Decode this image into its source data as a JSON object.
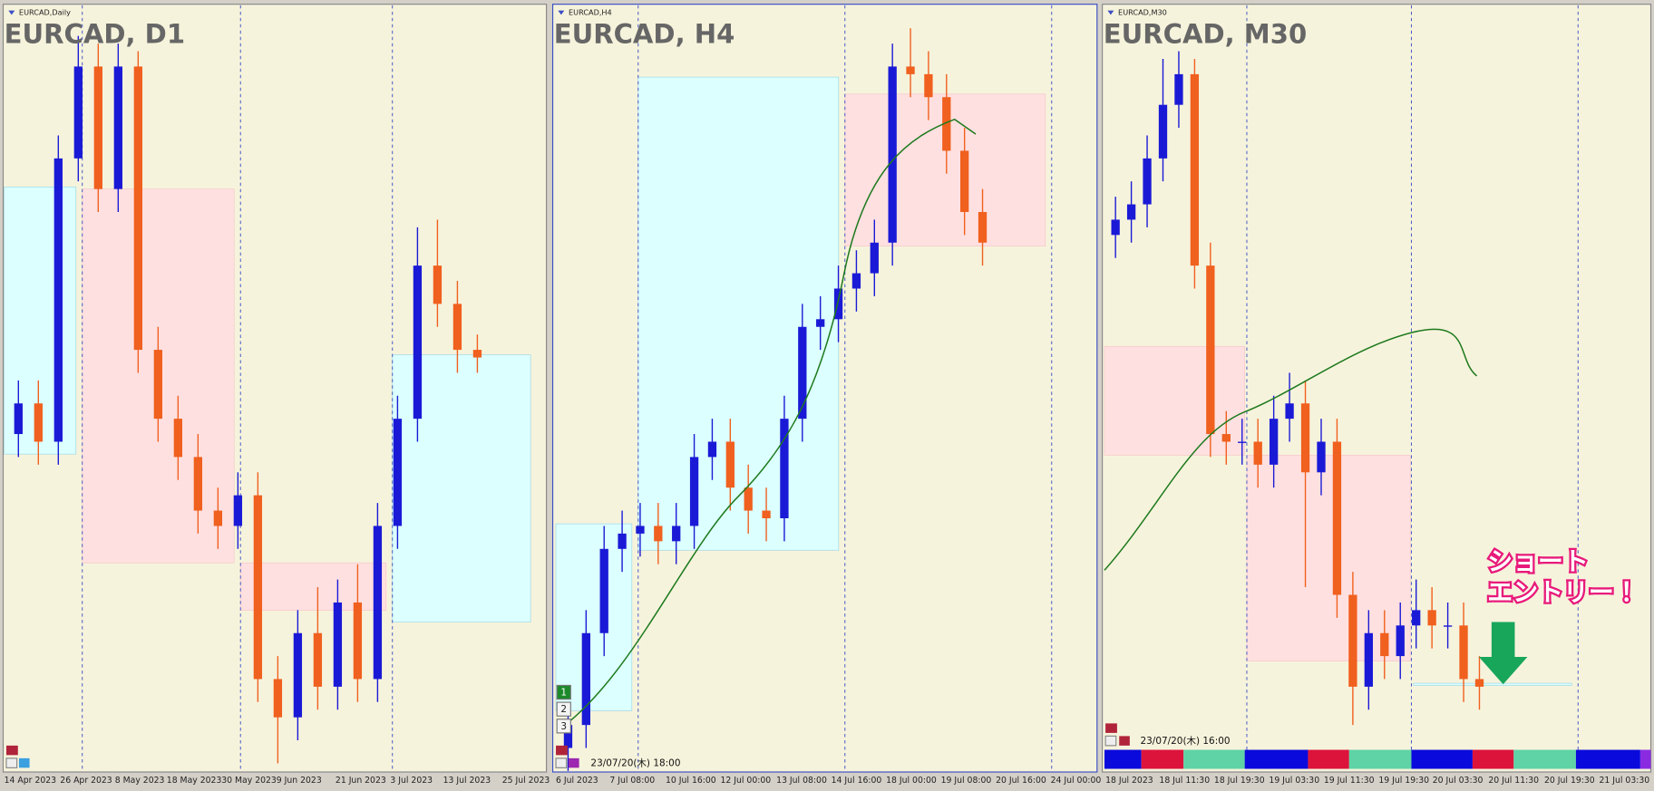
{
  "chart_data": [
    {
      "type": "candlestick",
      "symbol": "EURCAD,Daily",
      "title": "EURCAD, D1",
      "up_color": "#1a1ad6",
      "down_color": "#f0601e",
      "ylim": [
        0,
        100
      ],
      "open": [
        44,
        48,
        43,
        80,
        92,
        76,
        92,
        55,
        46,
        41,
        34,
        32,
        36,
        12,
        7,
        18,
        11,
        22,
        12,
        32,
        46,
        66,
        61,
        55
      ],
      "high": [
        51,
        51,
        83,
        96,
        95,
        95,
        94,
        58,
        49,
        44,
        37,
        39,
        39,
        15,
        21,
        24,
        25,
        27,
        35,
        49,
        71,
        72,
        64,
        57
      ],
      "low": [
        41,
        40,
        40,
        77,
        73,
        73,
        52,
        43,
        38,
        31,
        29,
        29,
        9,
        1,
        4,
        8,
        8,
        9,
        9,
        29,
        43,
        58,
        52,
        52
      ],
      "close": [
        48,
        43,
        80,
        92,
        76,
        92,
        55,
        46,
        41,
        34,
        32,
        36,
        12,
        7,
        18,
        11,
        22,
        12,
        32,
        46,
        66,
        61,
        55,
        54
      ],
      "x_labels": [
        "14 Apr 2023",
        "26 Apr 2023",
        "8 May 2023",
        "18 May 2023",
        "30 May 2023",
        "9 Jun 2023",
        "21 Jun 2023",
        "3 Jul 2023",
        "13 Jul 2023",
        "25 Jul 2023"
      ]
    },
    {
      "type": "candlestick",
      "symbol": "EURCAD,H4",
      "title": "EURCAD, H4",
      "up_color": "#1a1ad6",
      "down_color": "#f0601e",
      "ylim": [
        0,
        100
      ],
      "open": [
        3,
        6,
        18,
        29,
        31,
        32,
        30,
        32,
        41,
        43,
        37,
        34,
        33,
        46,
        58,
        59,
        63,
        65,
        69,
        92,
        91,
        88,
        81,
        73
      ],
      "high": [
        9,
        21,
        32,
        34,
        35,
        35,
        35,
        44,
        46,
        46,
        40,
        37,
        49,
        61,
        62,
        66,
        68,
        72,
        95,
        97,
        94,
        91,
        84,
        76
      ],
      "low": [
        0,
        3,
        15,
        26,
        28,
        27,
        27,
        29,
        38,
        34,
        31,
        30,
        30,
        43,
        55,
        56,
        60,
        62,
        66,
        88,
        85,
        78,
        70,
        66
      ],
      "close": [
        6,
        18,
        29,
        31,
        32,
        30,
        32,
        41,
        43,
        37,
        34,
        33,
        46,
        58,
        59,
        63,
        65,
        69,
        92,
        91,
        88,
        81,
        73,
        69
      ],
      "x_labels": [
        "6 Jul 2023",
        "7 Jul 08:00",
        "10 Jul 16:00",
        "12 Jul 00:00",
        "13 Jul 08:00",
        "14 Jul 16:00",
        "18 Jul 00:00",
        "19 Jul 08:00",
        "20 Jul 16:00",
        "24 Jul 00:00"
      ],
      "timestamp": "23/07/20(木) 18:00"
    },
    {
      "type": "candlestick",
      "symbol": "EURCAD,M30",
      "title": "EURCAD, M30",
      "up_color": "#1a1ad6",
      "down_color": "#f0601e",
      "ylim": [
        0,
        100
      ],
      "open": [
        70,
        72,
        74,
        80,
        87,
        91,
        66,
        44,
        43,
        43,
        40,
        46,
        48,
        39,
        43,
        23,
        11,
        18,
        15,
        19,
        21,
        19,
        19,
        12
      ],
      "high": [
        75,
        77,
        83,
        93,
        94,
        93,
        69,
        47,
        46,
        46,
        49,
        52,
        51,
        46,
        46,
        26,
        21,
        21,
        22,
        25,
        24,
        22,
        22,
        15
      ],
      "low": [
        67,
        69,
        71,
        77,
        84,
        63,
        41,
        40,
        40,
        37,
        37,
        43,
        24,
        36,
        20,
        6,
        8,
        12,
        12,
        16,
        16,
        16,
        9,
        8
      ],
      "close": [
        72,
        74,
        80,
        87,
        91,
        66,
        44,
        43,
        43,
        40,
        46,
        48,
        39,
        43,
        23,
        11,
        18,
        15,
        19,
        21,
        19,
        19,
        12,
        11
      ],
      "x_labels": [
        "18 Jul 2023",
        "18 Jul 11:30",
        "18 Jul 19:30",
        "19 Jul 03:30",
        "19 Jul 11:30",
        "19 Jul 19:30",
        "20 Jul 03:30",
        "20 Jul 11:30",
        "20 Jul 19:30",
        "21 Jul 03:30"
      ],
      "timestamp": "23/07/20(木) 16:00"
    }
  ],
  "buttons": [
    "1",
    "2",
    "3"
  ],
  "annotation": [
    "ショート",
    "エントリー！"
  ]
}
